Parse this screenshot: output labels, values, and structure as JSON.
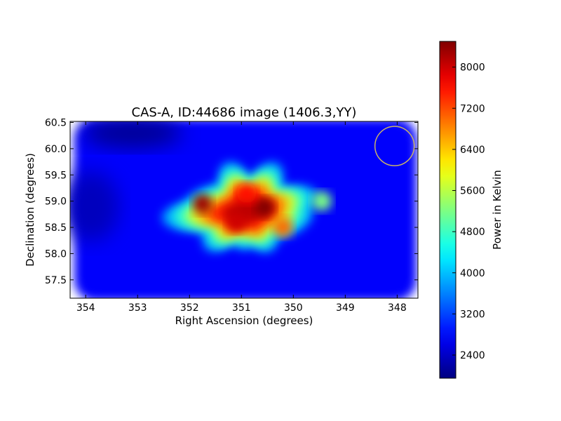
{
  "chart_data": {
    "type": "heatmap",
    "title": "CAS-A, ID:44686 image (1406.3,YY)",
    "xlabel": "Right Ascension (degrees)",
    "ylabel": "Declination (degrees)",
    "colorbar_label": "Power in Kelvin",
    "colormap": "jet",
    "xlim": [
      354.3,
      347.6
    ],
    "ylim": [
      57.15,
      60.52
    ],
    "xticks": [
      354,
      353,
      352,
      351,
      350,
      349,
      348
    ],
    "xtick_labels": [
      "354",
      "353",
      "352",
      "351",
      "350",
      "349",
      "348"
    ],
    "yticks": [
      57.5,
      58.0,
      58.5,
      59.0,
      59.5,
      60.0,
      60.5
    ],
    "ytick_labels": [
      "57.5",
      "58.0",
      "58.5",
      "59.0",
      "59.5",
      "60.0",
      "60.5"
    ],
    "color_range": [
      1950,
      8500
    ],
    "colorbar_ticks": [
      2400,
      3200,
      4000,
      4800,
      5600,
      6400,
      7200,
      8000
    ],
    "colorbar_tick_labels": [
      "2400",
      "3200",
      "4000",
      "4800",
      "5600",
      "6400",
      "7200",
      "8000"
    ],
    "background_level": 2750,
    "peak_level": 8500,
    "source": {
      "center_ra": 350.9,
      "center_dec": 58.8,
      "lobes": [
        {
          "ra": 351.75,
          "dec": 58.95,
          "value": 8300
        },
        {
          "ra": 350.55,
          "dec": 58.88,
          "value": 8500
        },
        {
          "ra": 351.1,
          "dec": 58.6,
          "value": 8000
        },
        {
          "ra": 350.9,
          "dec": 59.15,
          "value": 7600
        },
        {
          "ra": 349.45,
          "dec": 59.0,
          "value": 5200
        },
        {
          "ra": 350.2,
          "dec": 58.5,
          "value": 7000
        }
      ]
    },
    "beam_marker": {
      "ra": 348.05,
      "dec": 60.05,
      "shape": "circle",
      "color": "#c8b26a"
    }
  }
}
